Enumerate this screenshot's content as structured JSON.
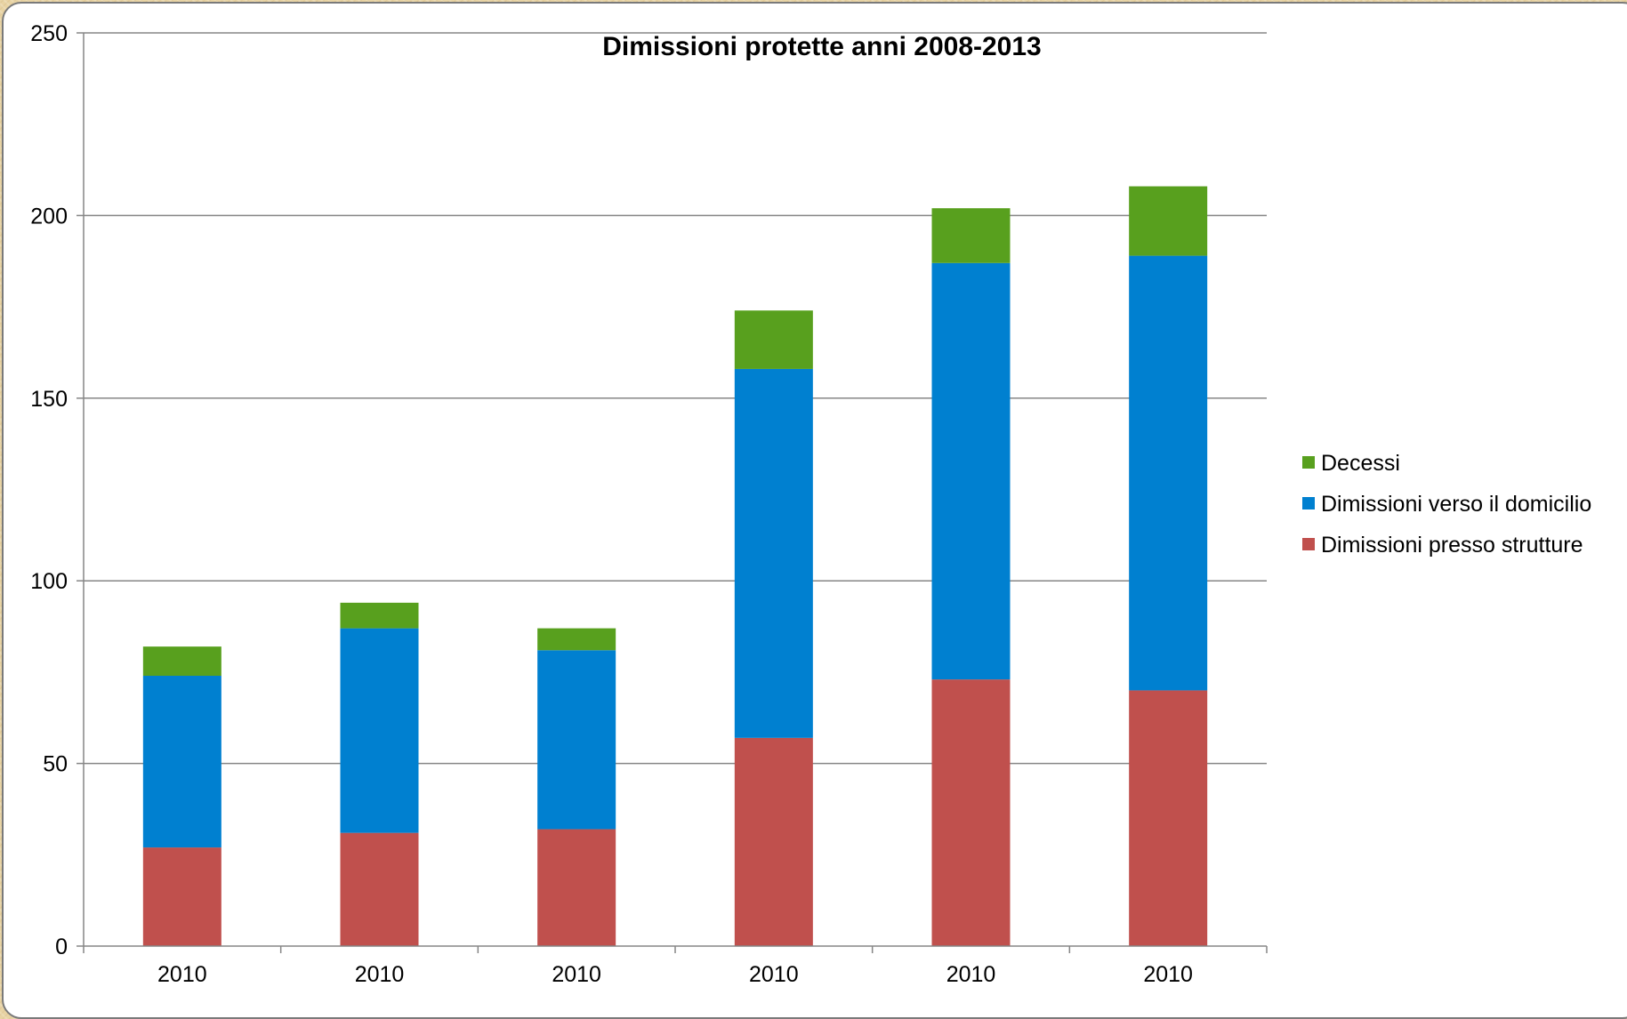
{
  "chart_data": {
    "type": "bar",
    "stacked": true,
    "title": "Dimissioni protette anni 2008-2013",
    "xlabel": "",
    "ylabel": "",
    "categories": [
      "2010",
      "2010",
      "2010",
      "2010",
      "2010",
      "2010"
    ],
    "series": [
      {
        "name": "Dimissioni presso strutture",
        "color": "#c0504d",
        "values": [
          27,
          31,
          32,
          57,
          73,
          70
        ]
      },
      {
        "name": "Dimissioni verso il domicilio",
        "color": "#0080d0",
        "values": [
          47,
          56,
          49,
          101,
          114,
          119
        ]
      },
      {
        "name": "Decessi",
        "color": "#58a01e",
        "values": [
          8,
          7,
          6,
          16,
          15,
          19
        ]
      }
    ],
    "ylim": [
      0,
      250
    ],
    "yticks": [
      0,
      50,
      100,
      150,
      200,
      250
    ],
    "grid": true,
    "legend_position": "right",
    "legend_order": [
      "Decessi",
      "Dimissioni verso il domicilio",
      "Dimissioni presso strutture"
    ]
  }
}
